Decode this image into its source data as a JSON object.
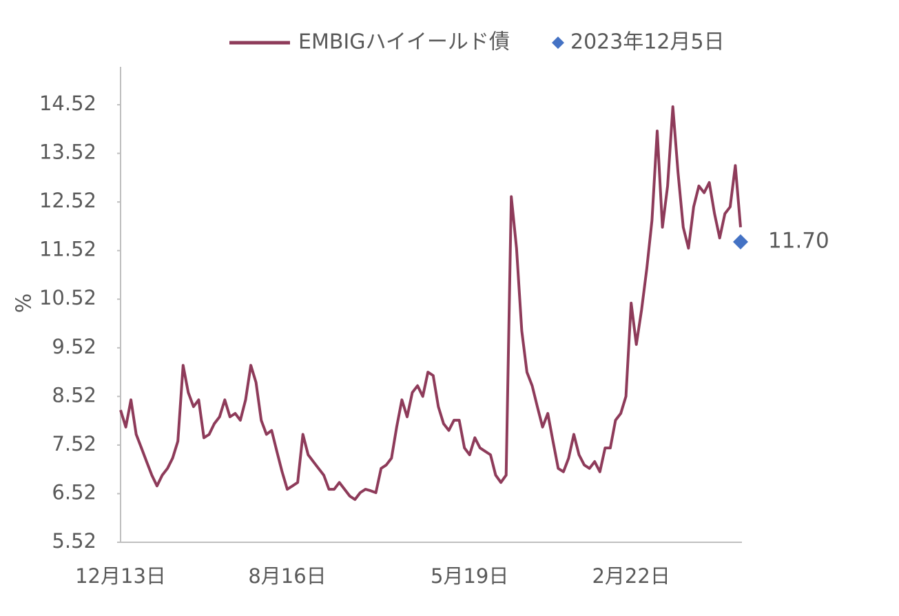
{
  "chart_data": {
    "type": "line",
    "y_label": "%",
    "categories": [
      "12月13日",
      null,
      null,
      null,
      null,
      null,
      null,
      null,
      null,
      null,
      null,
      null,
      null,
      null,
      null,
      null,
      null,
      null,
      null,
      null,
      null,
      null,
      null,
      null,
      null,
      null,
      null,
      null,
      null,
      null,
      null,
      null,
      "8月16日",
      null,
      null,
      null,
      null,
      null,
      null,
      null,
      null,
      null,
      null,
      null,
      null,
      null,
      null,
      null,
      null,
      null,
      null,
      null,
      null,
      null,
      null,
      null,
      null,
      null,
      null,
      null,
      null,
      null,
      null,
      null,
      null,
      null,
      null,
      "5月19日",
      null,
      null,
      null,
      null,
      null,
      null,
      null,
      null,
      null,
      null,
      null,
      null,
      null,
      null,
      null,
      null,
      null,
      null,
      null,
      null,
      null,
      null,
      null,
      null,
      null,
      null,
      null,
      null,
      null,
      null,
      "2月22日",
      null,
      null,
      null,
      null,
      null,
      null,
      null,
      null,
      null,
      null,
      null,
      null,
      null,
      null,
      null,
      null,
      null,
      null,
      null,
      null,
      null
    ],
    "series": [
      {
        "name": "EMBIGハイイールド債",
        "color": "#8e3b5a",
        "values": [
          8.24,
          7.89,
          8.45,
          7.74,
          7.46,
          7.18,
          6.9,
          6.68,
          6.9,
          7.04,
          7.25,
          7.6,
          9.16,
          8.6,
          8.31,
          8.45,
          7.67,
          7.74,
          7.96,
          8.1,
          8.45,
          8.1,
          8.17,
          8.03,
          8.45,
          9.16,
          8.81,
          8.03,
          7.74,
          7.82,
          7.39,
          6.97,
          6.61,
          6.68,
          6.75,
          7.74,
          7.32,
          7.18,
          7.04,
          6.9,
          6.61,
          6.61,
          6.75,
          6.61,
          6.47,
          6.4,
          6.54,
          6.61,
          6.58,
          6.54,
          7.04,
          7.11,
          7.25,
          7.89,
          8.45,
          8.1,
          8.6,
          8.74,
          8.52,
          9.02,
          8.95,
          8.31,
          7.96,
          7.82,
          8.03,
          8.03,
          7.46,
          7.32,
          7.67,
          7.46,
          7.39,
          7.32,
          6.9,
          6.75,
          6.9,
          12.63,
          11.57,
          9.87,
          9.02,
          8.74,
          8.31,
          7.89,
          8.17,
          7.6,
          7.04,
          6.97,
          7.25,
          7.74,
          7.32,
          7.11,
          7.04,
          7.18,
          6.97,
          7.46,
          7.46,
          8.03,
          8.17,
          8.52,
          10.44,
          9.59,
          10.3,
          11.15,
          12.14,
          13.98,
          12.0,
          12.85,
          14.48,
          13.13,
          12.0,
          11.57,
          12.42,
          12.85,
          12.71,
          12.92,
          12.28,
          11.78,
          12.28,
          12.42,
          13.27,
          12.0
        ]
      },
      {
        "name": "2023年12月5日",
        "color": "#4472c4",
        "marker": "diamond",
        "values": [
          null,
          null,
          null,
          null,
          null,
          null,
          null,
          null,
          null,
          null,
          null,
          null,
          null,
          null,
          null,
          null,
          null,
          null,
          null,
          null,
          null,
          null,
          null,
          null,
          null,
          null,
          null,
          null,
          null,
          null,
          null,
          null,
          null,
          null,
          null,
          null,
          null,
          null,
          null,
          null,
          null,
          null,
          null,
          null,
          null,
          null,
          null,
          null,
          null,
          null,
          null,
          null,
          null,
          null,
          null,
          null,
          null,
          null,
          null,
          null,
          null,
          null,
          null,
          null,
          null,
          null,
          null,
          null,
          null,
          null,
          null,
          null,
          null,
          null,
          null,
          null,
          null,
          null,
          null,
          null,
          null,
          null,
          null,
          null,
          null,
          null,
          null,
          null,
          null,
          null,
          null,
          null,
          null,
          null,
          null,
          null,
          null,
          null,
          null,
          null,
          null,
          null,
          null,
          null,
          null,
          null,
          null,
          null,
          null,
          null,
          null,
          null,
          null,
          null,
          null,
          null,
          null,
          null,
          null,
          11.7
        ],
        "value_labels": [
          null,
          null,
          null,
          null,
          null,
          null,
          null,
          null,
          null,
          null,
          null,
          null,
          null,
          null,
          null,
          null,
          null,
          null,
          null,
          null,
          null,
          null,
          null,
          null,
          null,
          null,
          null,
          null,
          null,
          null,
          null,
          null,
          null,
          null,
          null,
          null,
          null,
          null,
          null,
          null,
          null,
          null,
          null,
          null,
          null,
          null,
          null,
          null,
          null,
          null,
          null,
          null,
          null,
          null,
          null,
          null,
          null,
          null,
          null,
          null,
          null,
          null,
          null,
          null,
          null,
          null,
          null,
          null,
          null,
          null,
          null,
          null,
          null,
          null,
          null,
          null,
          null,
          null,
          null,
          null,
          null,
          null,
          null,
          null,
          null,
          null,
          null,
          null,
          null,
          null,
          null,
          null,
          null,
          null,
          null,
          null,
          null,
          null,
          null,
          null,
          null,
          null,
          null,
          null,
          null,
          null,
          null,
          null,
          null,
          null,
          null,
          null,
          null,
          null,
          null,
          null,
          null,
          null,
          null,
          "11.70"
        ]
      }
    ],
    "ylim": [
      5.52,
      15.3
    ],
    "yticks": [
      5.52,
      6.52,
      7.52,
      8.52,
      9.52,
      10.52,
      11.52,
      12.52,
      13.52,
      14.52
    ],
    "legend": "top"
  }
}
